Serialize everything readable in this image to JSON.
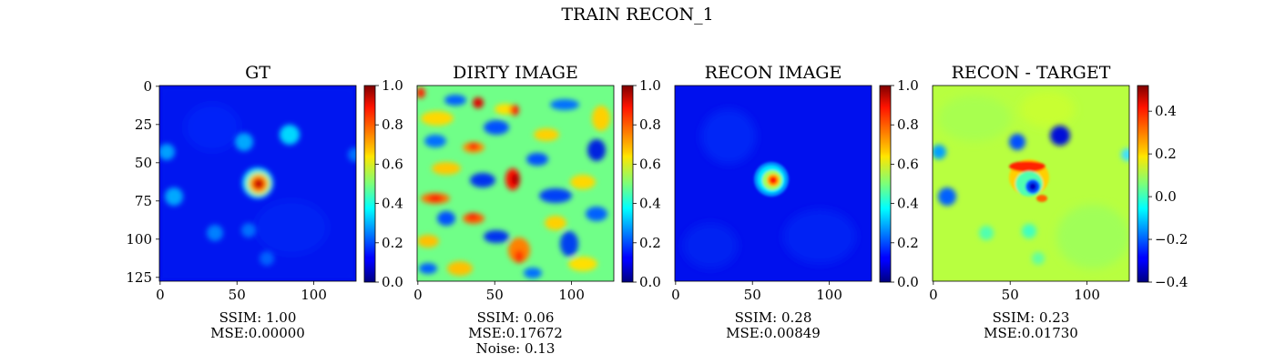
{
  "figure": {
    "title": "TRAIN RECON_1"
  },
  "chart_data": [
    {
      "type": "heatmap",
      "title": "GT",
      "xlim": [
        0,
        127
      ],
      "ylim": [
        0,
        127
      ],
      "xticks": [
        "0",
        "50",
        "100"
      ],
      "yticks": [
        "0",
        "25",
        "50",
        "75",
        "100",
        "125"
      ],
      "colorbar": {
        "range": [
          0.0,
          1.0
        ],
        "ticks": [
          "0.0",
          "0.2",
          "0.4",
          "0.6",
          "0.8",
          "1.0"
        ],
        "cmap": "jet"
      },
      "metrics": [
        "SSIM: 1.00",
        "MSE:0.00000"
      ]
    },
    {
      "type": "heatmap",
      "title": "DIRTY IMAGE",
      "xlim": [
        0,
        127
      ],
      "ylim": [
        0,
        127
      ],
      "xticks": [
        "0",
        "50",
        "100"
      ],
      "colorbar": {
        "range": [
          0.0,
          1.0
        ],
        "ticks": [
          "0.0",
          "0.2",
          "0.4",
          "0.6",
          "0.8",
          "1.0"
        ],
        "cmap": "jet"
      },
      "metrics": [
        "SSIM: 0.06",
        "MSE:0.17672",
        "Noise: 0.13"
      ]
    },
    {
      "type": "heatmap",
      "title": "RECON IMAGE",
      "xlim": [
        0,
        127
      ],
      "ylim": [
        0,
        127
      ],
      "xticks": [
        "0",
        "50",
        "100"
      ],
      "colorbar": {
        "range": [
          0.0,
          1.0
        ],
        "ticks": [
          "0.0",
          "0.2",
          "0.4",
          "0.6",
          "0.8",
          "1.0"
        ],
        "cmap": "jet"
      },
      "metrics": [
        "SSIM: 0.28",
        "MSE:0.00849"
      ]
    },
    {
      "type": "heatmap",
      "title": "RECON - TARGET",
      "xlim": [
        0,
        127
      ],
      "ylim": [
        0,
        127
      ],
      "xticks": [
        "0",
        "50",
        "100"
      ],
      "colorbar": {
        "range": [
          -0.4,
          0.52
        ],
        "ticks": [
          "−0.4",
          "−0.2",
          "0.0",
          "0.2",
          "0.4"
        ],
        "tick_values": [
          -0.4,
          -0.2,
          0.0,
          0.2,
          0.4
        ],
        "cmap": "jet"
      },
      "metrics": [
        "SSIM: 0.23",
        "MSE:0.01730"
      ]
    }
  ]
}
